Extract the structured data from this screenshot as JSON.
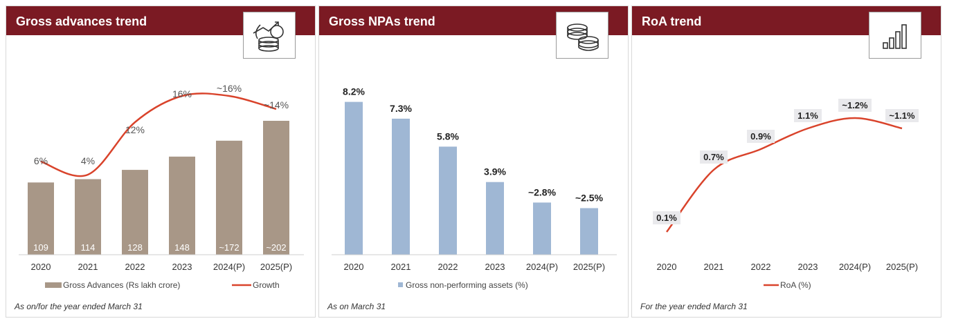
{
  "colors": {
    "header": "#7b1a23",
    "advances_bar": "#a89787",
    "npa_bar": "#9fb7d4",
    "line": "#d9432b",
    "label_bg": "#e9e9ec"
  },
  "panels": [
    {
      "title": "Gross advances trend",
      "icon": "coins-growth-icon",
      "footnote": "As on/for the year ended March 31"
    },
    {
      "title": "Gross NPAs trend",
      "icon": "coin-stack-icon",
      "footnote": "As on March 31"
    },
    {
      "title": "RoA trend",
      "icon": "bar-growth-icon",
      "footnote": "For the year ended March 31"
    }
  ],
  "chart_data": [
    {
      "type": "bar",
      "title": "Gross advances trend",
      "categories": [
        "2020",
        "2021",
        "2022",
        "2023",
        "2024(P)",
        "2025(P)"
      ],
      "series": [
        {
          "name": "Gross Advances (Rs lakh crore)",
          "kind": "bar",
          "values": [
            109,
            114,
            128,
            148,
            172,
            202
          ],
          "labels": [
            "109",
            "114",
            "128",
            "148",
            "~172",
            "~202"
          ]
        },
        {
          "name": "Growth",
          "kind": "line",
          "values": [
            6,
            4,
            12,
            16,
            16,
            14
          ],
          "labels": [
            "6%",
            "4%",
            "12%",
            "16%",
            "~16%",
            "~14%"
          ]
        }
      ],
      "legend": [
        "Gross Advances (Rs lakh crore)",
        "Growth"
      ],
      "legend_position": "bottom",
      "grid": false
    },
    {
      "type": "bar",
      "title": "Gross NPAs trend",
      "categories": [
        "2020",
        "2021",
        "2022",
        "2023",
        "2024(P)",
        "2025(P)"
      ],
      "series": [
        {
          "name": "Gross non-performing assets (%)",
          "values": [
            8.2,
            7.3,
            5.8,
            3.9,
            2.8,
            2.5
          ],
          "labels": [
            "8.2%",
            "7.3%",
            "5.8%",
            "3.9%",
            "~2.8%",
            "~2.5%"
          ]
        }
      ],
      "legend": [
        "Gross non-performing assets (%)"
      ],
      "legend_position": "bottom",
      "grid": false
    },
    {
      "type": "line",
      "title": "RoA trend",
      "categories": [
        "2020",
        "2021",
        "2022",
        "2023",
        "2024(P)",
        "2025(P)"
      ],
      "series": [
        {
          "name": "RoA (%)",
          "values": [
            0.1,
            0.7,
            0.9,
            1.1,
            1.2,
            1.1
          ],
          "labels": [
            "0.1%",
            "0.7%",
            "0.9%",
            "1.1%",
            "~1.2%",
            "~1.1%"
          ]
        }
      ],
      "legend": [
        "RoA (%)"
      ],
      "legend_position": "bottom",
      "grid": false
    }
  ]
}
